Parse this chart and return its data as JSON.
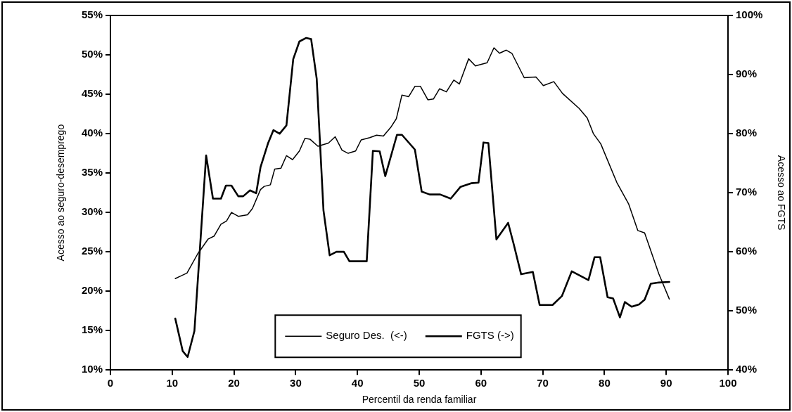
{
  "chart_data": {
    "type": "line",
    "xlabel": "Percentil da renda familiar",
    "ylabel": "Acesso ao seguro-desemprego",
    "y2label": "Acesso ao FGTS",
    "xlim": [
      0,
      100
    ],
    "xticks": [
      0,
      10,
      20,
      30,
      40,
      50,
      60,
      70,
      80,
      90,
      100
    ],
    "ylim": [
      10,
      55
    ],
    "yticks": [
      {
        "value": 10,
        "label": "10%"
      },
      {
        "value": 15,
        "label": "15%"
      },
      {
        "value": 20,
        "label": "20%"
      },
      {
        "value": 25,
        "label": "25%"
      },
      {
        "value": 30,
        "label": "30%"
      },
      {
        "value": 35,
        "label": "35%"
      },
      {
        "value": 40,
        "label": "40%"
      },
      {
        "value": 45,
        "label": "45%"
      },
      {
        "value": 50,
        "label": "50%"
      },
      {
        "value": 55,
        "label": "55%"
      }
    ],
    "y2lim": [
      40,
      100
    ],
    "y2ticks": [
      {
        "value": 40,
        "label": "40%"
      },
      {
        "value": 50,
        "label": "50%"
      },
      {
        "value": 60,
        "label": "60%"
      },
      {
        "value": 70,
        "label": "70%"
      },
      {
        "value": 80,
        "label": "80%"
      },
      {
        "value": 90,
        "label": "90%"
      },
      {
        "value": 100,
        "label": "100%"
      }
    ],
    "grid": false,
    "legend": "bottom",
    "marker": "none",
    "line_style": "solid",
    "series": [
      {
        "name": "Seguro Des.  (<-)",
        "color": "#000000",
        "x": [
          10.5,
          12.4,
          14.1,
          15.8,
          16.8,
          17.9,
          18.8,
          19.6,
          20.7,
          22.2,
          23.0,
          24.3,
          24.9,
          25.9,
          26.6,
          27.6,
          28.5,
          29.5,
          30.6,
          31.5,
          32.3,
          33.6,
          35.3,
          36.4,
          37.5,
          38.5,
          39.7,
          40.6,
          42.0,
          43.1,
          44.2,
          45.4,
          46.3,
          47.2,
          48.3,
          49.3,
          50.2,
          51.4,
          52.3,
          53.3,
          54.4,
          55.6,
          56.5,
          58.0,
          59.1,
          61.0,
          62.1,
          63.0,
          64.1,
          65.0,
          67.0,
          68.9,
          70.1,
          71.8,
          73.2,
          75.9,
          77.2,
          78.2,
          79.4,
          82.0,
          83.9,
          85.4,
          86.5,
          88.8,
          90.5
        ],
        "values": [
          21.6,
          22.3,
          24.7,
          26.6,
          27.0,
          28.5,
          28.9,
          30.0,
          29.5,
          29.7,
          30.5,
          32.9,
          33.3,
          33.5,
          35.5,
          35.6,
          37.2,
          36.7,
          37.8,
          39.4,
          39.3,
          38.4,
          38.8,
          39.6,
          37.9,
          37.5,
          37.8,
          39.2,
          39.5,
          39.8,
          39.7,
          40.8,
          41.9,
          44.9,
          44.7,
          46.0,
          46.0,
          44.3,
          44.4,
          45.7,
          45.3,
          46.8,
          46.3,
          49.5,
          48.6,
          49.0,
          50.9,
          50.2,
          50.6,
          50.2,
          47.1,
          47.2,
          46.1,
          46.6,
          45.1,
          43.2,
          42.0,
          40.0,
          38.7,
          33.8,
          31.1,
          27.7,
          27.4,
          22.2,
          19.0
        ]
      },
      {
        "name": "FGTS (->)",
        "color": "#000000",
        "axis": "y2",
        "x": [
          10.5,
          11.7,
          12.5,
          13.6,
          15.5,
          16.6,
          17.9,
          18.7,
          19.6,
          20.7,
          21.5,
          22.6,
          23.6,
          24.3,
          25.5,
          26.4,
          27.4,
          28.5,
          29.6,
          30.6,
          31.7,
          32.5,
          33.4,
          34.5,
          35.5,
          36.6,
          37.8,
          38.7,
          41.5,
          42.5,
          43.6,
          44.5,
          46.4,
          47.2,
          49.3,
          50.4,
          51.7,
          53.4,
          55.1,
          56.7,
          58.4,
          59.6,
          60.4,
          61.2,
          62.5,
          64.4,
          65.3,
          66.5,
          68.4,
          69.5,
          71.6,
          73.1,
          74.7,
          77.4,
          78.4,
          79.3,
          80.5,
          81.4,
          82.5,
          83.3,
          84.4,
          85.6,
          86.5,
          87.5,
          88.8,
          90.5
        ],
        "values": [
          48.7,
          43.2,
          42.2,
          46.6,
          76.3,
          69.0,
          69.0,
          71.2,
          71.2,
          69.4,
          69.4,
          70.4,
          69.9,
          74.3,
          78.3,
          80.6,
          80.0,
          81.4,
          92.6,
          95.6,
          96.2,
          96.0,
          89.3,
          67.0,
          59.4,
          60.0,
          60.0,
          58.4,
          58.4,
          77.1,
          77.0,
          72.8,
          79.8,
          79.8,
          77.3,
          70.2,
          69.7,
          69.7,
          69.0,
          71.0,
          71.6,
          71.7,
          78.5,
          78.4,
          62.1,
          64.9,
          61.3,
          56.2,
          56.6,
          51.0,
          51.0,
          52.5,
          56.7,
          55.2,
          59.1,
          59.1,
          52.3,
          52.1,
          48.9,
          51.5,
          50.7,
          51.1,
          51.9,
          54.6,
          54.8,
          54.9
        ]
      }
    ]
  }
}
